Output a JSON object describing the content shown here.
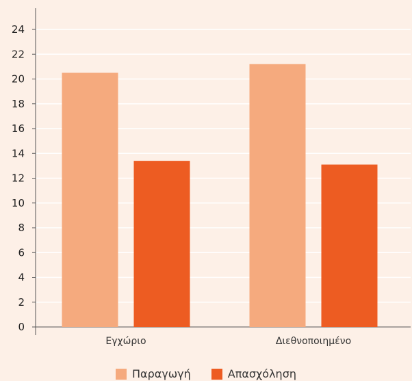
{
  "chart_data": {
    "type": "bar",
    "categories": [
      "Εγχώριο",
      "Διεθνοποιημένο"
    ],
    "series": [
      {
        "name": "Παραγωγή",
        "values": [
          20.5,
          21.2
        ],
        "color": "#f5aa7e"
      },
      {
        "name": "Απασχόληση",
        "values": [
          13.4,
          13.1
        ],
        "color": "#ed5c22"
      }
    ],
    "ylim": [
      0,
      24
    ],
    "yticks": [
      0,
      2,
      4,
      6,
      8,
      10,
      12,
      14,
      16,
      18,
      20,
      22,
      24
    ],
    "grid": true,
    "legend_position": "bottom",
    "background": "#fdf0e7",
    "grid_color": "#ffffff"
  }
}
